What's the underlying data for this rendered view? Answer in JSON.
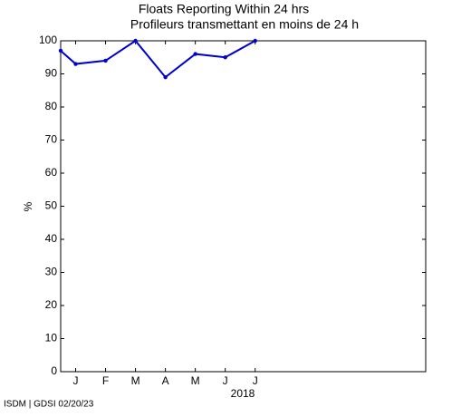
{
  "chart_data": {
    "type": "line",
    "title": "Floats Reporting Within 24 hrs",
    "subtitle": "Profileurs transmettant en moins de 24 h",
    "y_label": "%",
    "x_note": "2018",
    "footer": "ISDM | GDSI 02/20/23",
    "x": [
      0.5,
      1,
      2,
      3,
      4,
      5,
      6,
      7
    ],
    "series": [
      {
        "name": "Floats reporting within 24 hrs",
        "color": "#0000d0",
        "values": [
          97,
          93,
          94,
          100,
          89,
          96,
          95,
          100
        ]
      }
    ],
    "xlim": [
      0.5,
      12.7
    ],
    "xticks": [
      {
        "value": 1,
        "label": "J"
      },
      {
        "value": 2,
        "label": "F"
      },
      {
        "value": 3,
        "label": "M"
      },
      {
        "value": 4,
        "label": "A"
      },
      {
        "value": 5,
        "label": "M"
      },
      {
        "value": 6,
        "label": "J"
      },
      {
        "value": 7,
        "label": "J"
      }
    ],
    "ylim": [
      0,
      100
    ],
    "yticks": [
      0,
      10,
      20,
      30,
      40,
      50,
      60,
      70,
      80,
      90,
      100
    ],
    "grid": false
  }
}
